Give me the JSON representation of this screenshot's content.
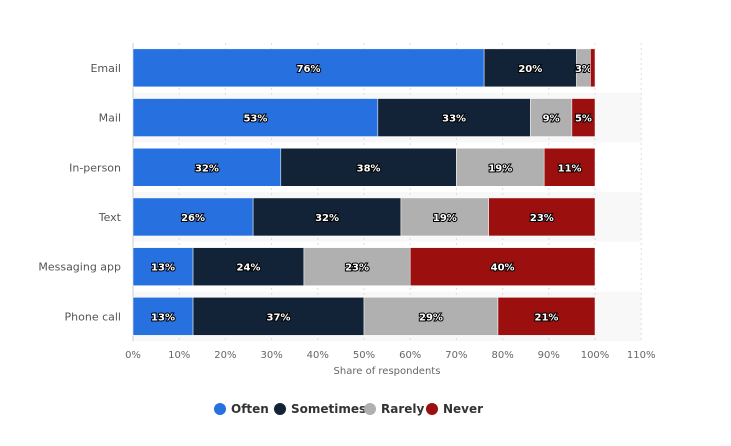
{
  "chart_data": {
    "type": "bar",
    "orientation": "horizontal",
    "stacked": true,
    "categories": [
      "Email",
      "Mail",
      "In-person",
      "Text",
      "Messaging app",
      "Phone call"
    ],
    "series": [
      {
        "name": "Often",
        "color": "#2670e0",
        "values": [
          76,
          53,
          32,
          26,
          13,
          13
        ]
      },
      {
        "name": "Sometimes",
        "color": "#122337",
        "values": [
          20,
          33,
          38,
          32,
          24,
          37
        ]
      },
      {
        "name": "Rarely",
        "color": "#b0b0b0",
        "values": [
          3,
          9,
          19,
          19,
          23,
          29
        ]
      },
      {
        "name": "Never",
        "color": "#9b0f0f",
        "values": [
          1,
          5,
          11,
          23,
          40,
          21
        ]
      }
    ],
    "data_labels": [
      [
        "76%",
        "53%",
        "32%",
        "26%",
        "13%",
        "13%"
      ],
      [
        "20%",
        "33%",
        "38%",
        "32%",
        "24%",
        "37%"
      ],
      [
        "3%",
        "9%",
        "19%",
        "19%",
        "23%",
        "29%"
      ],
      [
        "",
        "5%",
        "11%",
        "23%",
        "40%",
        "21%"
      ]
    ],
    "xlabel": "Share of respondents",
    "xlim": [
      0,
      110
    ],
    "xticks": [
      "0%",
      "10%",
      "20%",
      "30%",
      "40%",
      "50%",
      "60%",
      "70%",
      "80%",
      "90%",
      "100%",
      "110%"
    ],
    "grid": true,
    "legend_position": "bottom"
  }
}
